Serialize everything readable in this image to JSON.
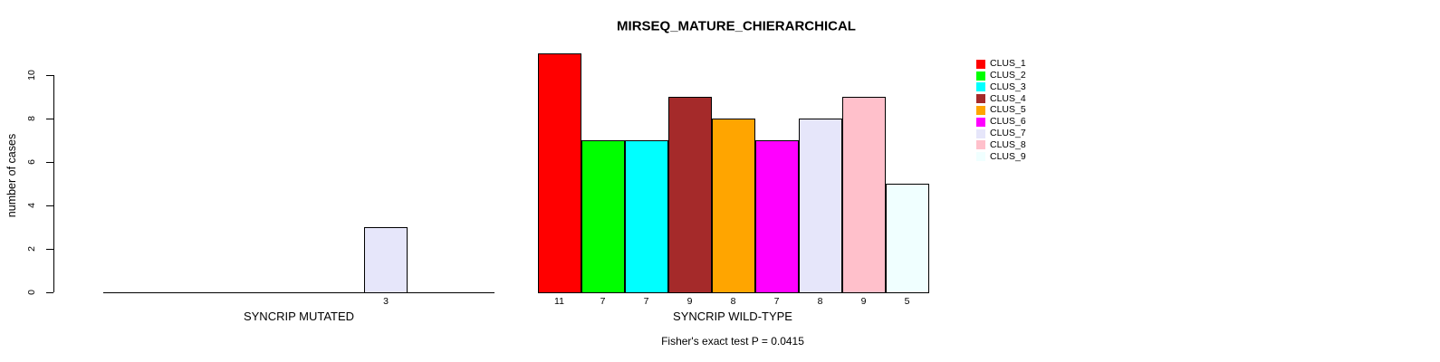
{
  "title": "MIRSEQ_MATURE_CHIERARCHICAL",
  "caption": "Fisher's exact test P = 0.0415",
  "chart_data": {
    "type": "bar",
    "title": "MIRSEQ_MATURE_CHIERARCHICAL",
    "ylabel": "number of cases",
    "xlabel_left": "SYNCRIP MUTATED",
    "xlabel_right": "SYNCRIP WILD-TYPE",
    "ylim": [
      0,
      10
    ],
    "yticks": [
      0,
      2,
      4,
      6,
      8,
      10
    ],
    "grid": false,
    "legend_position": "right",
    "categories": [
      "CLUS_1",
      "CLUS_2",
      "CLUS_3",
      "CLUS_4",
      "CLUS_5",
      "CLUS_6",
      "CLUS_7",
      "CLUS_8",
      "CLUS_9"
    ],
    "colors": [
      "#FF0000",
      "#00FF00",
      "#00FFFF",
      "#A52A2A",
      "#FFA500",
      "#FF00FF",
      "#E6E6FA",
      "#FFC0CB",
      "#F0FFFF"
    ],
    "series": [
      {
        "name": "SYNCRIP MUTATED",
        "values": [
          0,
          0,
          0,
          0,
          0,
          0,
          3,
          0,
          0
        ]
      },
      {
        "name": "SYNCRIP WILD-TYPE",
        "values": [
          11,
          7,
          7,
          9,
          8,
          7,
          8,
          9,
          5
        ]
      }
    ],
    "bar_value_labels": {
      "left_shown": [
        "3"
      ],
      "right_shown": [
        "11",
        "7",
        "7",
        "9",
        "8",
        "7",
        "8",
        "9",
        "5"
      ]
    },
    "annotation": "Fisher's exact test P = 0.0415"
  },
  "colors": {
    "background": "#FFFFFF",
    "axis": "#000000",
    "text": "#000000",
    "bar_border": "#000000"
  }
}
